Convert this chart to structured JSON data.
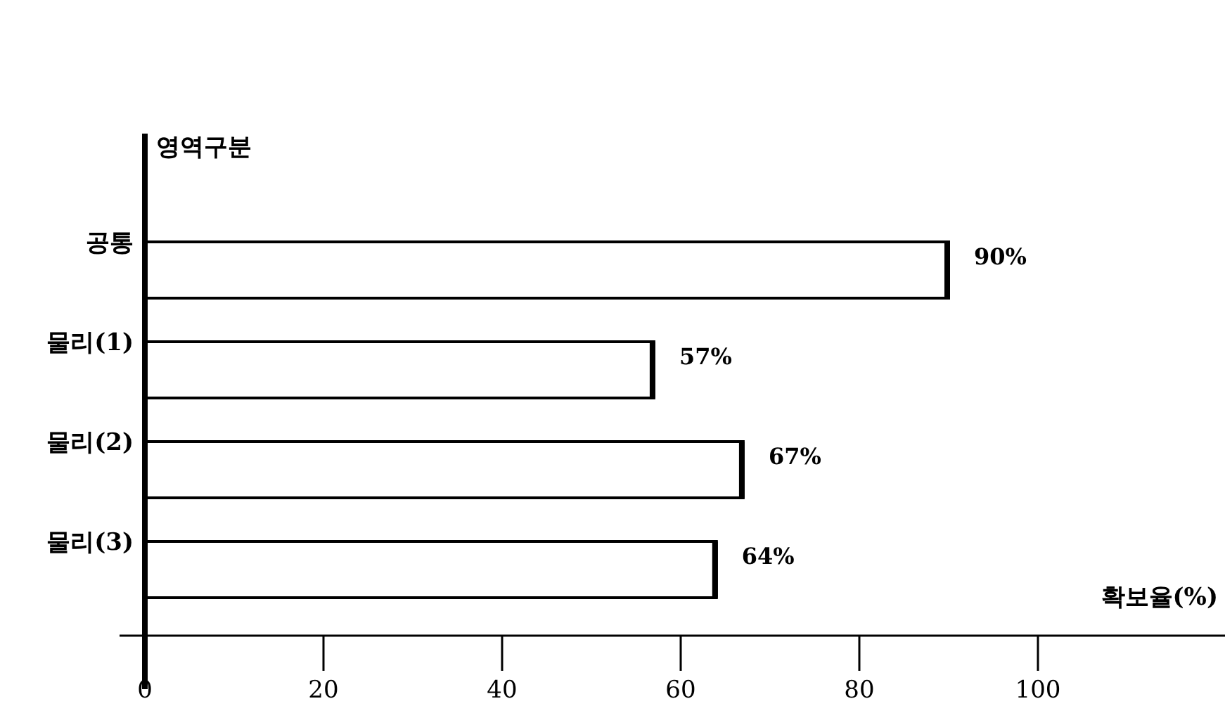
{
  "chart_data": {
    "type": "bar",
    "orientation": "horizontal",
    "ylabel": "영역구분",
    "xlabel": "확보율(%)",
    "categories": [
      "공통",
      "물리(1)",
      "물리(2)",
      "물리(3)"
    ],
    "values": [
      90,
      57,
      67,
      64
    ],
    "value_labels": [
      "90%",
      "57%",
      "67%",
      "64%"
    ],
    "color": "#ffffff",
    "xlim": [
      0,
      120
    ],
    "xticks": [
      0,
      20,
      40,
      60,
      80,
      100
    ],
    "grid": false
  }
}
